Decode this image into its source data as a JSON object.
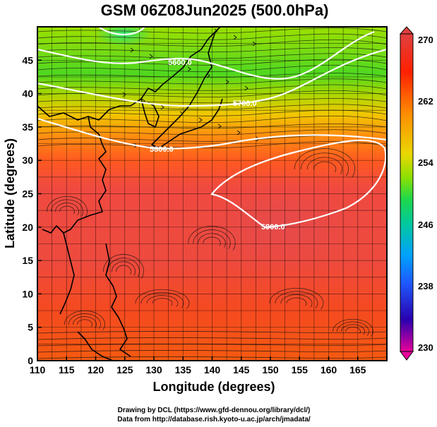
{
  "title": "GSM 06Z08Jun2025 (500.0hPa)",
  "map": {
    "lon_range": [
      110,
      170
    ],
    "lat_range": [
      0,
      50
    ],
    "x_label": "Longitude (degrees)",
    "y_label": "Latitude  (degrees)",
    "x_ticks": [
      "110",
      "115",
      "120",
      "125",
      "130",
      "135",
      "140",
      "145",
      "150",
      "155",
      "160",
      "165"
    ],
    "y_ticks": [
      "0",
      "5",
      "10",
      "15",
      "20",
      "25",
      "30",
      "35",
      "40",
      "45"
    ],
    "x_tick_values": [
      110,
      115,
      120,
      125,
      130,
      135,
      140,
      145,
      150,
      155,
      160,
      165
    ],
    "y_tick_values": [
      0,
      5,
      10,
      15,
      20,
      25,
      30,
      35,
      40,
      45
    ],
    "shaded_field": "temperature (K)",
    "contour_field": "geopotential height (m)",
    "contour_labels": [
      "5600.0",
      "5700.0",
      "5800.0",
      "5900.0"
    ],
    "vector_field": "wind streamlines"
  },
  "colorbar": {
    "ticks": [
      "270",
      "262",
      "254",
      "246",
      "238",
      "230"
    ],
    "min": 230,
    "max": 270,
    "colors": [
      "#e8009a",
      "#2a00b0",
      "#1d5cff",
      "#00b8d8",
      "#1ed84a",
      "#8fe000",
      "#e8d800",
      "#ff8c00",
      "#ff2000",
      "#e04040"
    ]
  },
  "credits": {
    "line1": "Drawing by DCL (https://www.gfd-dennou.org/library/dcl/)",
    "line2": "Data from http://database.rish.kyoto-u.ac.jp/arch/jmadata/"
  }
}
